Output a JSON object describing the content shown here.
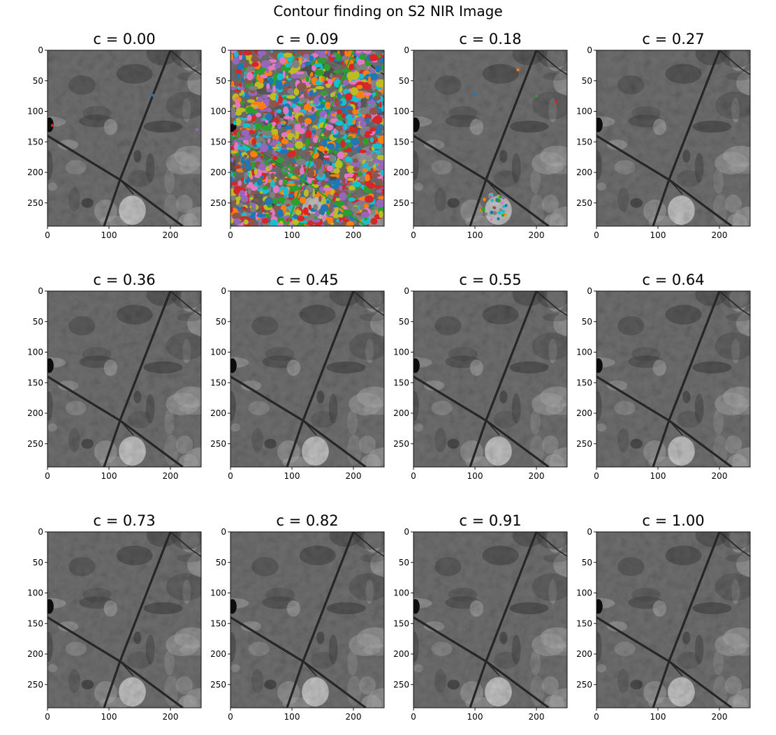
{
  "figure": {
    "title": "Contour finding on S2 NIR Image",
    "x_ticks": [
      "0",
      "100",
      "200"
    ],
    "y_ticks": [
      "0",
      "50",
      "100",
      "150",
      "200",
      "250"
    ],
    "panels": [
      {
        "title": "c = 0.00",
        "overlay": "sparse"
      },
      {
        "title": "c = 0.09",
        "overlay": "dense"
      },
      {
        "title": "c = 0.18",
        "overlay": "moderate"
      },
      {
        "title": "c = 0.27",
        "overlay": "none"
      },
      {
        "title": "c = 0.36",
        "overlay": "none"
      },
      {
        "title": "c = 0.45",
        "overlay": "none"
      },
      {
        "title": "c = 0.55",
        "overlay": "none"
      },
      {
        "title": "c = 0.64",
        "overlay": "none"
      },
      {
        "title": "c = 0.73",
        "overlay": "none"
      },
      {
        "title": "c = 0.82",
        "overlay": "none"
      },
      {
        "title": "c = 0.91",
        "overlay": "none"
      },
      {
        "title": "c = 1.00",
        "overlay": "none"
      }
    ],
    "contour_colors": [
      "#1f77b4",
      "#ff7f0e",
      "#2ca02c",
      "#d62728",
      "#9467bd",
      "#8c564b",
      "#e377c2",
      "#7f7f7f",
      "#bcbd22",
      "#17becf"
    ],
    "image_colors": {
      "base": "#6e6e6e",
      "light": "#a9a9a9",
      "dark": "#3a3a3a",
      "road": "#262626"
    }
  }
}
